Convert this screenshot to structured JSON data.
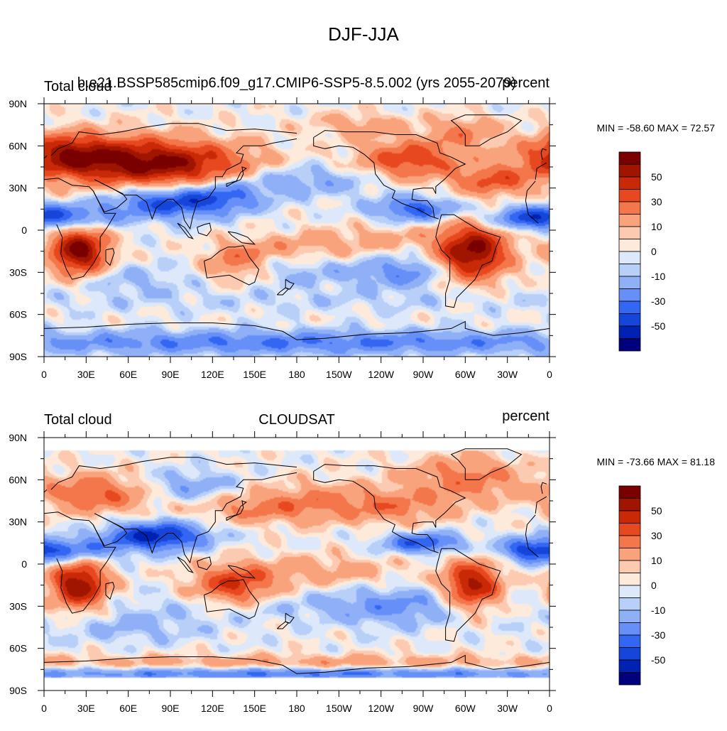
{
  "title": "DJF-JJA",
  "levels": [
    -60,
    -50,
    -40,
    -30,
    -20,
    -10,
    -5,
    0,
    5,
    10,
    20,
    30,
    40,
    50,
    60
  ],
  "colors": [
    "#00007f",
    "#0022b2",
    "#1646d9",
    "#3366f2",
    "#6690f7",
    "#8fb0f7",
    "#b8cff7",
    "#dde9fa",
    "#fdeadb",
    "#fbcab0",
    "#f9a37d",
    "#f4764b",
    "#e8481f",
    "#c92906",
    "#a01500",
    "#7a0000"
  ],
  "colorbar_labels": [
    {
      "level": 50,
      "text": "50"
    },
    {
      "level": 30,
      "text": "30"
    },
    {
      "level": 10,
      "text": "10"
    },
    {
      "level": 0,
      "text": "0"
    },
    {
      "level": -10,
      "text": "-10"
    },
    {
      "level": -30,
      "text": "-30"
    },
    {
      "level": -50,
      "text": "-50"
    }
  ],
  "lat_ticks": [
    "90N",
    "60N",
    "30N",
    "0",
    "30S",
    "60S",
    "90S"
  ],
  "lon_ticks": [
    "0",
    "30E",
    "60E",
    "90E",
    "120E",
    "150E",
    "180",
    "150W",
    "120W",
    "90W",
    "60W",
    "30W",
    "0"
  ],
  "panels": [
    {
      "left_title": "Total cloud",
      "center_title": "b.e21.BSSP585cmip6.f09_g17.CMIP6-SSP5-8.5.002 (yrs 2055-2079)",
      "right_title": "percent",
      "min_max": "MIN = -58.60 MAX =  72.57"
    },
    {
      "left_title": "Total cloud",
      "center_title": "CLOUDSAT",
      "right_title": "percent",
      "min_max": "MIN = -73.66 MAX =  81.18"
    }
  ],
  "chart_data": [
    {
      "type": "heatmap",
      "title": "DJF-JJA",
      "subtitle": "b.e21.BSSP585cmip6.f09_g17.CMIP6-SSP5-8.5.002 (yrs 2055-2079)",
      "variable": "Total cloud",
      "units": "percent",
      "x_range": [
        0,
        360
      ],
      "y_range": [
        -90,
        90
      ],
      "min": -58.6,
      "max": 72.57,
      "features": [
        {
          "lon": 25,
          "lat": -15,
          "value": 65,
          "sx": 14,
          "sy": 12
        },
        {
          "lon": 305,
          "lat": -15,
          "value": 65,
          "sx": 18,
          "sy": 14
        },
        {
          "lon": 50,
          "lat": 50,
          "value": 45,
          "sx": 45,
          "sy": 12
        },
        {
          "lon": 100,
          "lat": 45,
          "value": 35,
          "sx": 40,
          "sy": 12
        },
        {
          "lon": 15,
          "lat": 55,
          "value": 30,
          "sx": 20,
          "sy": 10
        },
        {
          "lon": 260,
          "lat": 50,
          "value": 38,
          "sx": 25,
          "sy": 10
        },
        {
          "lon": 320,
          "lat": 35,
          "value": 30,
          "sx": 20,
          "sy": 8
        },
        {
          "lon": 300,
          "lat": 70,
          "value": 20,
          "sx": 18,
          "sy": 8
        },
        {
          "lon": 225,
          "lat": 75,
          "value": 15,
          "sx": 25,
          "sy": 6
        },
        {
          "lon": 135,
          "lat": -25,
          "value": 22,
          "sx": 15,
          "sy": 9
        },
        {
          "lon": 150,
          "lat": -15,
          "value": 12,
          "sx": 20,
          "sy": 6
        },
        {
          "lon": 200,
          "lat": -10,
          "value": 14,
          "sx": 30,
          "sy": 8
        },
        {
          "lon": 250,
          "lat": -5,
          "value": 10,
          "sx": 20,
          "sy": 6
        },
        {
          "lon": 90,
          "lat": 20,
          "value": -45,
          "sx": 30,
          "sy": 8
        },
        {
          "lon": 15,
          "lat": 10,
          "value": -35,
          "sx": 25,
          "sy": 6
        },
        {
          "lon": 265,
          "lat": 15,
          "value": -38,
          "sx": 20,
          "sy": 6
        },
        {
          "lon": 340,
          "lat": 8,
          "value": -30,
          "sx": 20,
          "sy": 6
        },
        {
          "lon": 130,
          "lat": 25,
          "value": -25,
          "sx": 20,
          "sy": 8
        },
        {
          "lon": 185,
          "lat": 35,
          "value": -18,
          "sx": 40,
          "sy": 8
        },
        {
          "lon": 260,
          "lat": -30,
          "value": -22,
          "sx": 20,
          "sy": 8
        },
        {
          "lon": 200,
          "lat": -30,
          "value": -12,
          "sx": 40,
          "sy": 8
        },
        {
          "lon": 60,
          "lat": -35,
          "value": -12,
          "sx": 30,
          "sy": 7
        },
        {
          "lon": 180,
          "lat": -80,
          "value": -30,
          "sx": 200,
          "sy": 6
        },
        {
          "lon": 180,
          "lat": -50,
          "value": -6,
          "sx": 200,
          "sy": 6
        }
      ]
    },
    {
      "type": "heatmap",
      "title": "DJF-JJA",
      "subtitle": "CLOUDSAT",
      "variable": "Total cloud",
      "units": "percent",
      "x_range": [
        0,
        360
      ],
      "y_range": [
        -90,
        90
      ],
      "min": -73.66,
      "max": 81.18,
      "features": [
        {
          "lon": 25,
          "lat": -15,
          "value": 60,
          "sx": 14,
          "sy": 12
        },
        {
          "lon": 305,
          "lat": -15,
          "value": 55,
          "sx": 14,
          "sy": 12
        },
        {
          "lon": 135,
          "lat": -15,
          "value": 40,
          "sx": 20,
          "sy": 10
        },
        {
          "lon": 80,
          "lat": 20,
          "value": -55,
          "sx": 25,
          "sy": 7
        },
        {
          "lon": 15,
          "lat": 10,
          "value": -35,
          "sx": 25,
          "sy": 6
        },
        {
          "lon": 270,
          "lat": 15,
          "value": -40,
          "sx": 20,
          "sy": 5
        },
        {
          "lon": 345,
          "lat": 10,
          "value": -30,
          "sx": 15,
          "sy": 6
        },
        {
          "lon": 40,
          "lat": 50,
          "value": 30,
          "sx": 30,
          "sy": 10
        },
        {
          "lon": 100,
          "lat": 55,
          "value": -20,
          "sx": 25,
          "sy": 8
        },
        {
          "lon": 150,
          "lat": 40,
          "value": 20,
          "sx": 30,
          "sy": 8
        },
        {
          "lon": 200,
          "lat": 45,
          "value": 18,
          "sx": 30,
          "sy": 10
        },
        {
          "lon": 250,
          "lat": 40,
          "value": 20,
          "sx": 25,
          "sy": 8
        },
        {
          "lon": 300,
          "lat": 60,
          "value": 25,
          "sx": 30,
          "sy": 12
        },
        {
          "lon": 200,
          "lat": -5,
          "value": 15,
          "sx": 40,
          "sy": 8
        },
        {
          "lon": 60,
          "lat": -45,
          "value": -12,
          "sx": 40,
          "sy": 8
        },
        {
          "lon": 250,
          "lat": -30,
          "value": -18,
          "sx": 30,
          "sy": 10
        },
        {
          "lon": 180,
          "lat": -70,
          "value": 15,
          "sx": 200,
          "sy": 4
        },
        {
          "lon": 180,
          "lat": -78,
          "value": -30,
          "sx": 200,
          "sy": 3
        },
        {
          "lon": 180,
          "lat": -30,
          "value": -8,
          "sx": 100,
          "sy": 8
        }
      ]
    }
  ]
}
